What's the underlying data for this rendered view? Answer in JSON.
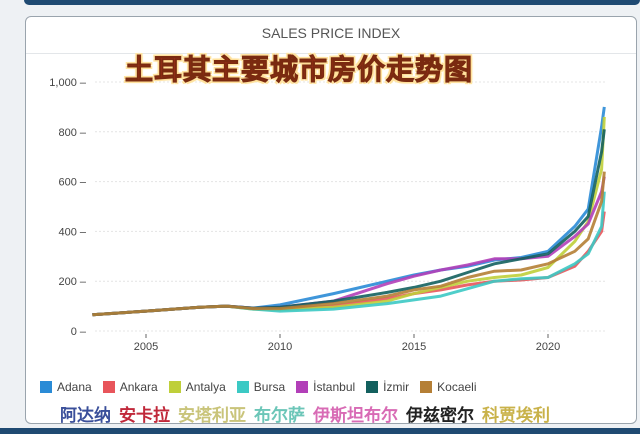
{
  "card_title": "SALES PRICE INDEX",
  "overlay_title": "土耳其主要城市房价走势图",
  "chinese_names": [
    {
      "text": "阿达纳",
      "color": "#3a4f9a"
    },
    {
      "text": "安卡拉",
      "color": "#c0283a"
    },
    {
      "text": "安塔利亚",
      "color": "#c9c47a"
    },
    {
      "text": "布尔萨",
      "color": "#6cc6b8"
    },
    {
      "text": "伊斯坦布尔",
      "color": "#d86bb5"
    },
    {
      "text": "伊兹密尔",
      "color": "#222222"
    },
    {
      "text": "科贾埃利",
      "color": "#c9b24a"
    }
  ],
  "chart_data": {
    "type": "line",
    "title": "SALES PRICE INDEX",
    "xlabel": "",
    "ylabel": "",
    "xlim": [
      2003,
      2022.3
    ],
    "ylim": [
      0,
      1000
    ],
    "xticks": [
      2005,
      2010,
      2015,
      2020
    ],
    "yticks": [
      0,
      200,
      400,
      600,
      800,
      1000
    ],
    "ytick_labels": [
      "0",
      "200",
      "400",
      "600",
      "800",
      "1,000"
    ],
    "grid": true,
    "legend_position": "bottom",
    "x": [
      2003,
      2005,
      2007,
      2008,
      2009,
      2010,
      2012,
      2014,
      2015,
      2016,
      2017,
      2018,
      2019,
      2020,
      2021,
      2021.5,
      2022,
      2022.1
    ],
    "series": [
      {
        "name": "Adana",
        "color": "#2a8bd6",
        "values": [
          65,
          80,
          95,
          100,
          92,
          105,
          150,
          200,
          225,
          245,
          260,
          285,
          295,
          320,
          420,
          490,
          820,
          900
        ]
      },
      {
        "name": "Ankara",
        "color": "#e8555b",
        "values": [
          65,
          80,
          95,
          100,
          90,
          90,
          100,
          130,
          150,
          165,
          185,
          200,
          205,
          215,
          260,
          320,
          400,
          480
        ]
      },
      {
        "name": "Antalya",
        "color": "#bfcf3a",
        "values": [
          65,
          80,
          95,
          100,
          88,
          85,
          95,
          120,
          150,
          175,
          200,
          215,
          225,
          255,
          360,
          440,
          650,
          860
        ]
      },
      {
        "name": "Bursa",
        "color": "#3cc9c4",
        "values": [
          65,
          80,
          95,
          100,
          88,
          80,
          88,
          110,
          125,
          140,
          170,
          200,
          210,
          215,
          270,
          310,
          420,
          560
        ]
      },
      {
        "name": "İstanbul",
        "color": "#b23fb8",
        "values": [
          65,
          80,
          95,
          100,
          92,
          95,
          120,
          190,
          220,
          245,
          265,
          290,
          290,
          300,
          380,
          430,
          560,
          620
        ]
      },
      {
        "name": "İzmir",
        "color": "#13605e",
        "values": [
          65,
          80,
          95,
          100,
          92,
          95,
          120,
          155,
          175,
          200,
          235,
          270,
          290,
          310,
          400,
          460,
          720,
          810
        ]
      },
      {
        "name": "Kocaeli",
        "color": "#b57f35",
        "values": [
          65,
          80,
          95,
          100,
          90,
          90,
          110,
          140,
          165,
          180,
          215,
          240,
          245,
          270,
          320,
          370,
          520,
          640
        ]
      }
    ]
  }
}
